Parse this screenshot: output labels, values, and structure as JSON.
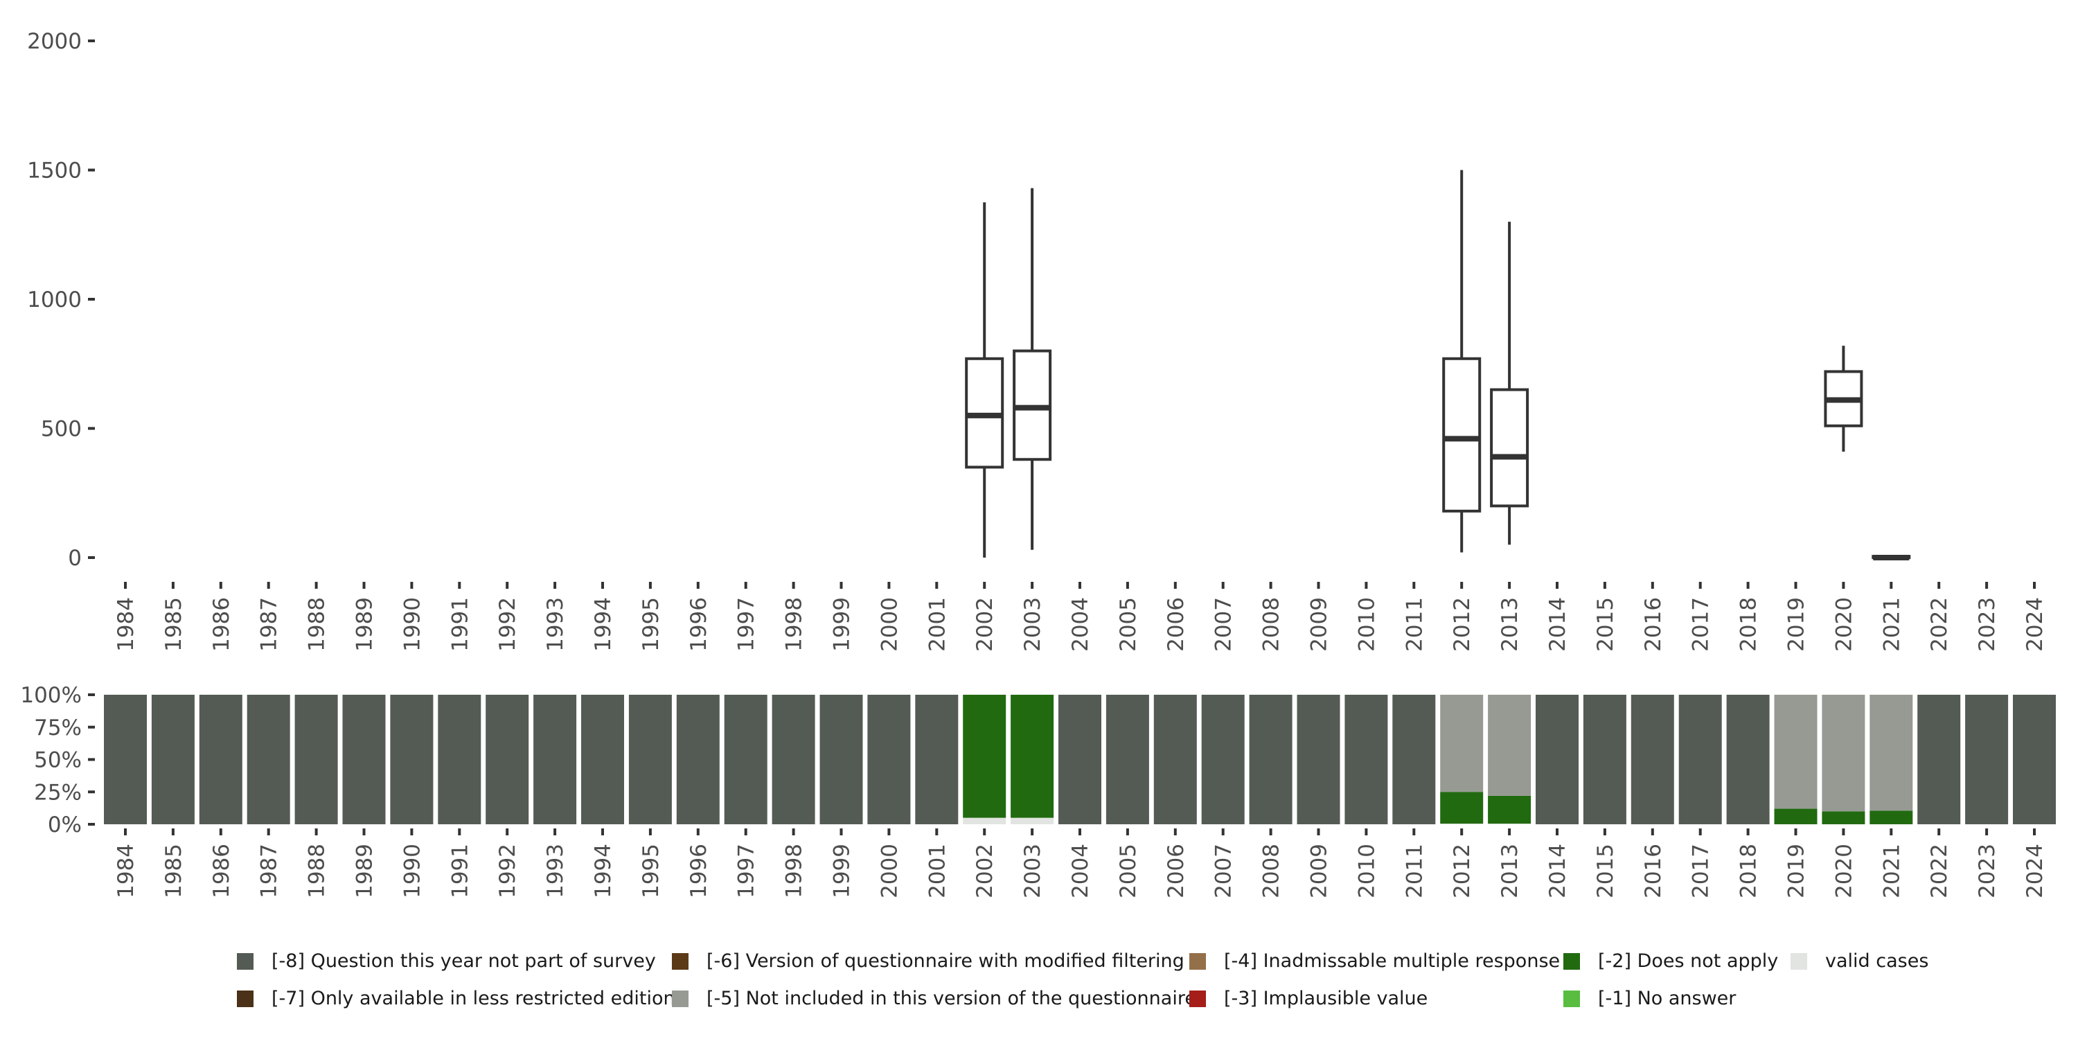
{
  "chart_data": [
    {
      "type": "boxplot",
      "title": "",
      "xlabel": "",
      "ylabel": "",
      "ylim": [
        0,
        2000
      ],
      "yticks": [
        "0",
        "500",
        "1000",
        "1500",
        "2000"
      ],
      "ytick_values": [
        0,
        500,
        1000,
        1500,
        2000
      ],
      "categories": [
        "1984",
        "1985",
        "1986",
        "1987",
        "1988",
        "1989",
        "1990",
        "1991",
        "1992",
        "1993",
        "1994",
        "1995",
        "1996",
        "1997",
        "1998",
        "1999",
        "2000",
        "2001",
        "2002",
        "2003",
        "2004",
        "2005",
        "2006",
        "2007",
        "2008",
        "2009",
        "2010",
        "2011",
        "2012",
        "2013",
        "2014",
        "2015",
        "2016",
        "2017",
        "2018",
        "2019",
        "2020",
        "2021",
        "2022",
        "2023",
        "2024"
      ],
      "boxes": [
        {
          "x": "2002",
          "min": 0,
          "q1": 350,
          "median": 550,
          "q3": 770,
          "max": 1375
        },
        {
          "x": "2003",
          "min": 30,
          "q1": 380,
          "median": 580,
          "q3": 800,
          "max": 1430
        },
        {
          "x": "2012",
          "min": 20,
          "q1": 180,
          "median": 460,
          "q3": 770,
          "max": 1500
        },
        {
          "x": "2013",
          "min": 50,
          "q1": 200,
          "median": 390,
          "q3": 650,
          "max": 1300
        },
        {
          "x": "2020",
          "min": 410,
          "q1": 510,
          "median": 610,
          "q3": 720,
          "max": 820
        },
        {
          "x": "2021",
          "min": 0,
          "q1": 0,
          "median": 0,
          "q3": 5,
          "max": 5
        }
      ]
    },
    {
      "type": "stacked-bar",
      "ylim": [
        0,
        100
      ],
      "yticks": [
        "0%",
        "25%",
        "50%",
        "75%",
        "100%"
      ],
      "ytick_values": [
        0,
        25,
        50,
        75,
        100
      ],
      "categories": [
        "1984",
        "1985",
        "1986",
        "1987",
        "1988",
        "1989",
        "1990",
        "1991",
        "1992",
        "1993",
        "1994",
        "1995",
        "1996",
        "1997",
        "1998",
        "1999",
        "2000",
        "2001",
        "2002",
        "2003",
        "2004",
        "2005",
        "2006",
        "2007",
        "2008",
        "2009",
        "2010",
        "2011",
        "2012",
        "2013",
        "2014",
        "2015",
        "2016",
        "2017",
        "2018",
        "2019",
        "2020",
        "2021",
        "2022",
        "2023",
        "2024"
      ],
      "stack_order": [
        "valid",
        "-1",
        "-2",
        "-3",
        "-4",
        "-5",
        "-6",
        "-7",
        "-8"
      ],
      "special_years": {
        "2002": {
          "valid": 5,
          "-2": 95
        },
        "2003": {
          "valid": 5,
          "-2": 95
        },
        "2012": {
          "valid": 0.5,
          "-2": 24.5,
          "-5": 75
        },
        "2013": {
          "valid": 0.5,
          "-2": 21.5,
          "-5": 78
        },
        "2019": {
          "-2": 12,
          "-5": 88
        },
        "2020": {
          "-2": 10,
          "-5": 90
        },
        "2021": {
          "-2": 10.5,
          "-5": 89.5
        }
      },
      "default": {
        "-8": 100
      }
    }
  ],
  "legend": [
    {
      "key": "-8",
      "label": "[-8] Question this year not part of survey",
      "color": "#545b54"
    },
    {
      "key": "-7",
      "label": "[-7] Only available in less restricted edition",
      "color": "#4a3118"
    },
    {
      "key": "-6",
      "label": "[-6] Version of questionnaire with modified filtering",
      "color": "#5c3a18"
    },
    {
      "key": "-5",
      "label": "[-5] Not included in this version of the questionnaire",
      "color": "#969a93"
    },
    {
      "key": "-4",
      "label": "[-4] Inadmissable multiple response",
      "color": "#94704a"
    },
    {
      "key": "-3",
      "label": "[-3] Implausible value",
      "color": "#a51e1a"
    },
    {
      "key": "-2",
      "label": "[-2] Does not apply",
      "color": "#216a10"
    },
    {
      "key": "-1",
      "label": "[-1] No answer",
      "color": "#58bd40"
    },
    {
      "key": "valid",
      "label": "valid cases",
      "color": "#e1e4e0"
    }
  ],
  "colors": {
    "axis_text": "#4d4d4d",
    "box_stroke": "#333333"
  }
}
